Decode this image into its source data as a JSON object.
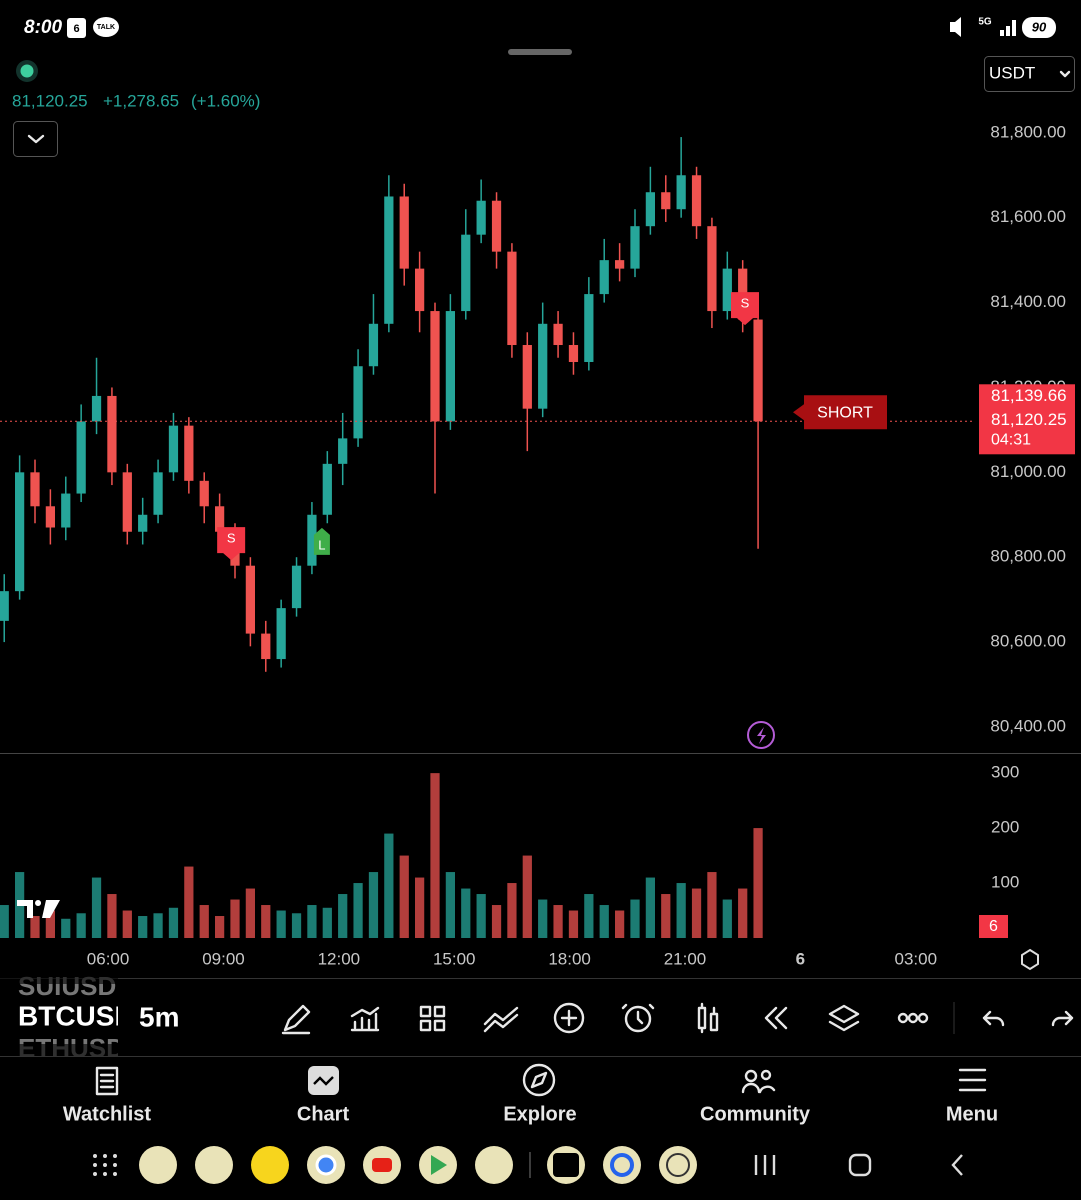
{
  "status_bar": {
    "time": "8:00",
    "calendar_day": "6",
    "talk_badge": "TALK",
    "network": "5G",
    "battery": "90"
  },
  "symbol_header": {
    "price": "81,120.25",
    "change": "+1,278.65",
    "change_percent": "(+1.60%)",
    "currency": "USDT"
  },
  "chart_data": {
    "type": "candlestick",
    "up_color": "#26a69a",
    "down_color": "#ef5350",
    "x": [
      3.3,
      3.7,
      4.1,
      4.5,
      4.9,
      5.3,
      5.7,
      6.1,
      6.5,
      6.9,
      7.3,
      7.7,
      8.1,
      8.5,
      8.9,
      9.3,
      9.7,
      10.1,
      10.5,
      10.9,
      11.3,
      11.7,
      12.1,
      12.5,
      12.9,
      13.3,
      13.7,
      14.1,
      14.5,
      14.9,
      15.3,
      15.7,
      16.1,
      16.5,
      16.9,
      17.3,
      17.7,
      18.1,
      18.5,
      18.9,
      19.3,
      19.7,
      20.1,
      20.5,
      20.9,
      21.3,
      21.7,
      22.1,
      22.5,
      22.9
    ],
    "open": [
      80650,
      80720,
      81000,
      80920,
      80870,
      80950,
      81120,
      81180,
      81000,
      80860,
      80900,
      81000,
      81110,
      80980,
      80920,
      80860,
      80780,
      80620,
      80560,
      80680,
      80780,
      80900,
      81020,
      81080,
      81250,
      81350,
      81650,
      81480,
      81380,
      81120,
      81380,
      81560,
      81640,
      81520,
      81300,
      81150,
      81350,
      81300,
      81260,
      81420,
      81500,
      81480,
      81580,
      81660,
      81620,
      81700,
      81580,
      81380,
      81480,
      81360
    ],
    "high": [
      80760,
      81040,
      81030,
      80960,
      80990,
      81160,
      81270,
      81200,
      81020,
      80940,
      81030,
      81140,
      81130,
      81000,
      80950,
      80880,
      80800,
      80650,
      80700,
      80800,
      80930,
      81050,
      81140,
      81290,
      81420,
      81700,
      81680,
      81520,
      81400,
      81420,
      81620,
      81690,
      81660,
      81540,
      81330,
      81400,
      81380,
      81330,
      81460,
      81550,
      81540,
      81620,
      81720,
      81700,
      81790,
      81720,
      81600,
      81520,
      81500,
      81400
    ],
    "low": [
      80600,
      80700,
      80880,
      80830,
      80840,
      80930,
      81090,
      80970,
      80830,
      80830,
      80880,
      80980,
      80950,
      80880,
      80830,
      80750,
      80590,
      80530,
      80540,
      80660,
      80760,
      80880,
      80970,
      81060,
      81230,
      81330,
      81440,
      81330,
      80950,
      81100,
      81360,
      81540,
      81480,
      81270,
      81050,
      81130,
      81270,
      81230,
      81240,
      81400,
      81450,
      81460,
      81560,
      81590,
      81600,
      81550,
      81340,
      81360,
      81330,
      80820
    ],
    "close": [
      80720,
      81000,
      80920,
      80870,
      80950,
      81120,
      81180,
      81000,
      80860,
      80900,
      81000,
      81110,
      80980,
      80920,
      80860,
      80780,
      80620,
      80560,
      80680,
      80780,
      80900,
      81020,
      81080,
      81250,
      81350,
      81650,
      81480,
      81380,
      81120,
      81380,
      81560,
      81640,
      81520,
      81300,
      81150,
      81350,
      81300,
      81260,
      81420,
      81500,
      81480,
      81580,
      81660,
      81620,
      81700,
      81580,
      81380,
      81480,
      81360,
      81120.25
    ],
    "xlim": [
      3.19,
      28.54
    ],
    "xticks": [
      {
        "value": 6,
        "label": "06:00"
      },
      {
        "value": 9,
        "label": "09:00"
      },
      {
        "value": 12,
        "label": "12:00"
      },
      {
        "value": 15,
        "label": "15:00"
      },
      {
        "value": 18,
        "label": "18:00"
      },
      {
        "value": 21,
        "label": "21:00"
      },
      {
        "value": 24,
        "label": "6"
      },
      {
        "value": 27,
        "label": "03:00"
      }
    ],
    "ylim": [
      80341,
      81842
    ],
    "yticks": [
      {
        "value": 80400,
        "label": "80,400.00"
      },
      {
        "value": 80600,
        "label": "80,600.00"
      },
      {
        "value": 80800,
        "label": "80,800.00"
      },
      {
        "value": 81000,
        "label": "81,000.00"
      },
      {
        "value": 81200,
        "label": "81,200.00"
      },
      {
        "value": 81400,
        "label": "81,400.00"
      },
      {
        "value": 81600,
        "label": "81,600.00"
      },
      {
        "value": 81800,
        "label": "81,800.00"
      }
    ],
    "last_price": {
      "value": 81120.25,
      "label": "81,120.25"
    },
    "bid_label": "81,139.66",
    "countdown": "04:31",
    "position_tag": "SHORT",
    "signals": [
      {
        "label": "S",
        "x": 9.2,
        "price": 80793
      },
      {
        "label": "L",
        "x": 11.56,
        "price": 80869
      },
      {
        "label": "S",
        "x": 22.56,
        "price": 81347
      }
    ],
    "volume": {
      "values": [
        60,
        120,
        40,
        50,
        35,
        45,
        110,
        80,
        50,
        40,
        45,
        55,
        130,
        60,
        40,
        70,
        90,
        60,
        50,
        45,
        60,
        55,
        80,
        100,
        120,
        190,
        150,
        110,
        300,
        120,
        90,
        80,
        60,
        100,
        150,
        70,
        60,
        50,
        80,
        60,
        50,
        70,
        110,
        80,
        100,
        90,
        120,
        70,
        90,
        200
      ],
      "ylim": [
        0,
        333
      ],
      "yticks": [
        100,
        200,
        300
      ],
      "badge": "6"
    }
  },
  "toolbar": {
    "symbol_above": "SUIUSD",
    "symbol": "BTCUSD",
    "symbol_below": "ETHUSD",
    "interval": "5m"
  },
  "nav": {
    "items": [
      "Watchlist",
      "Chart",
      "Explore",
      "Community",
      "Menu"
    ]
  }
}
